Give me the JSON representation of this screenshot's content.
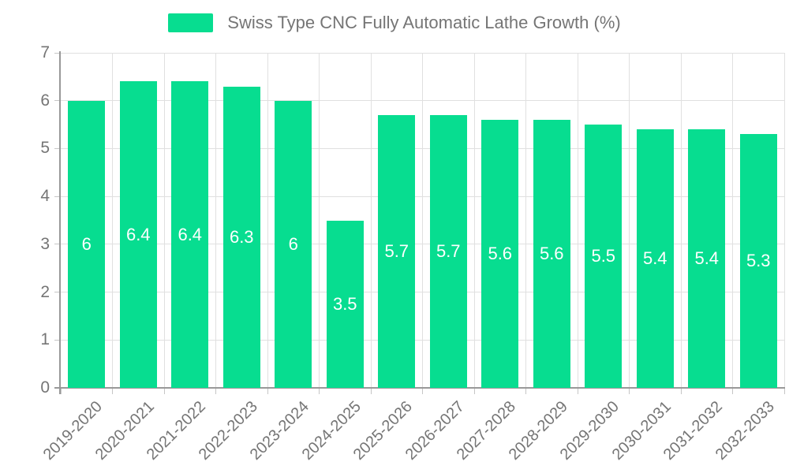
{
  "legend": {
    "label": "Swiss Type CNC Fully Automatic Lathe Growth (%)"
  },
  "chart_data": {
    "type": "bar",
    "title": "Swiss Type CNC Fully Automatic Lathe Growth (%)",
    "categories": [
      "2019-2020",
      "2020-2021",
      "2021-2022",
      "2022-2023",
      "2023-2024",
      "2024-2025",
      "2025-2026",
      "2026-2027",
      "2027-2028",
      "2028-2029",
      "2029-2030",
      "2030-2031",
      "2031-2032",
      "2032-2033"
    ],
    "values": [
      6,
      6.4,
      6.4,
      6.3,
      6,
      3.5,
      5.7,
      5.7,
      5.6,
      5.6,
      5.5,
      5.4,
      5.4,
      5.3
    ],
    "xlabel": "",
    "ylabel": "",
    "ylim": [
      0,
      7
    ],
    "yticks": [
      0,
      1,
      2,
      3,
      4,
      5,
      6,
      7
    ],
    "grid": true,
    "legend_position": "top",
    "bar_color": "#07DD90",
    "value_label_color": "#ffffff",
    "axis_text_color": "#757575",
    "grid_color": "#E0E0E0",
    "tick_color": "#C6C6C6",
    "axis_line_color": "#999999"
  }
}
